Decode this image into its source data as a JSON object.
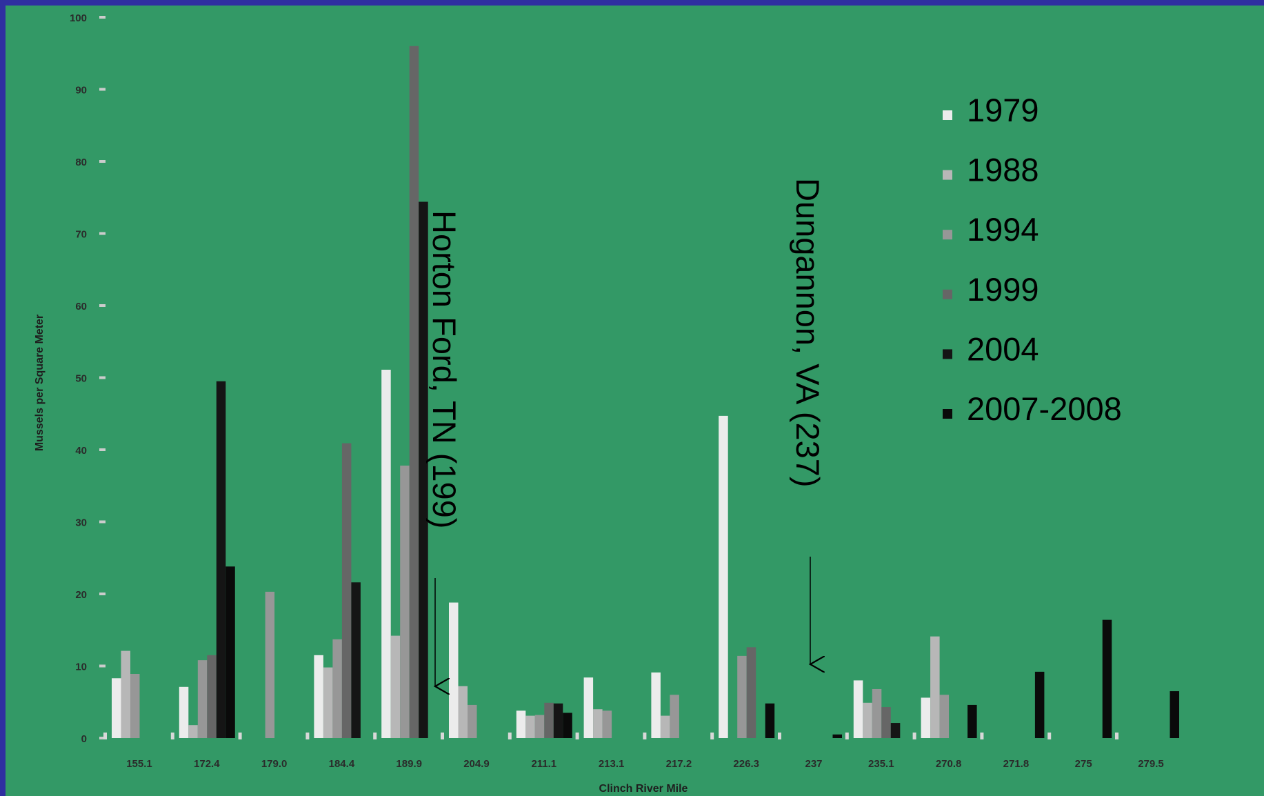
{
  "chart_data": {
    "type": "bar",
    "title": "",
    "xlabel": "Clinch River Mile",
    "ylabel": "Mussels per Square Meter",
    "ylim": [
      0,
      100
    ],
    "yticks": [
      "0",
      "10",
      "20",
      "30",
      "40",
      "50",
      "60",
      "70",
      "80",
      "90",
      "100"
    ],
    "grid": false,
    "legend_position": "right",
    "categories": [
      "155.1",
      "172.4",
      "179.0",
      "184.4",
      "189.9",
      "204.9",
      "211.1",
      "213.1",
      "217.2",
      "226.3",
      "237",
      "235.1",
      "270.8",
      "271.8",
      "275",
      "279.5"
    ],
    "series": [
      {
        "name": "1979",
        "color": "#ececec",
        "values": [
          8.3,
          7.1,
          0,
          11.5,
          51.1,
          18.8,
          3.8,
          8.4,
          9.1,
          44.7,
          0,
          8,
          5.6,
          0,
          0,
          0
        ]
      },
      {
        "name": "1988",
        "color": "#b7b7b7",
        "values": [
          12.1,
          1.8,
          0,
          9.8,
          14.2,
          7.2,
          3.1,
          4,
          3.1,
          0,
          0,
          4.9,
          14.1,
          0,
          0,
          0
        ]
      },
      {
        "name": "1994",
        "color": "#979797",
        "values": [
          8.9,
          10.8,
          20.3,
          13.7,
          37.8,
          4.6,
          3.2,
          3.8,
          6,
          11.4,
          0,
          6.8,
          6,
          0,
          0,
          0
        ]
      },
      {
        "name": "1999",
        "color": "#666666",
        "values": [
          0,
          11.5,
          0,
          40.9,
          96,
          0,
          4.9,
          0,
          0,
          12.6,
          0,
          4.3,
          0,
          0,
          0,
          0
        ]
      },
      {
        "name": "2004",
        "color": "#151515",
        "values": [
          0,
          49.5,
          0,
          21.6,
          74.4,
          0,
          4.8,
          0,
          0,
          0,
          0,
          2.1,
          0,
          0,
          0,
          0
        ]
      },
      {
        "name": "2007-2008",
        "color": "#0a0a0a",
        "values": [
          0,
          23.8,
          0,
          0,
          0,
          0,
          3.5,
          0,
          0,
          4.8,
          0.5,
          0,
          4.6,
          9.2,
          16.4,
          6.5
        ]
      }
    ],
    "annotations": [
      "Horton Ford, TN  (199)",
      "Dungannon, VA (237)"
    ]
  },
  "colors": {
    "background": "#339966",
    "border": "#2f2fa0"
  }
}
